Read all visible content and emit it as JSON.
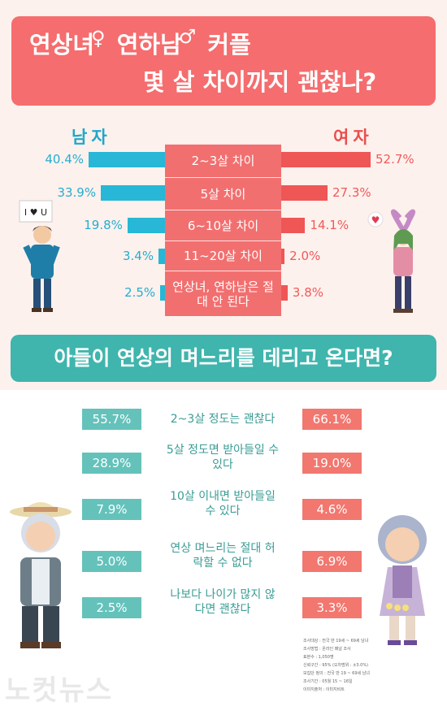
{
  "chart_data": [
    {
      "type": "bar",
      "title_line1": "연상녀 연하남 커플",
      "title_line2": "몇 살 차이까지 괜찮나?",
      "series": [
        {
          "name": "남자",
          "values": [
            40.4,
            33.9,
            19.8,
            3.4,
            2.5
          ]
        },
        {
          "name": "여자",
          "values": [
            52.7,
            27.3,
            14.1,
            2.0,
            3.8
          ]
        }
      ],
      "categories": [
        "2~3살 차이",
        "5살 차이",
        "6~10살 차이",
        "11~20살 차이",
        "연상녀, 연하남은 절대 안 된다"
      ],
      "labels_left": [
        "40.4%",
        "33.9%",
        "19.8%",
        "3.4%",
        "2.5%"
      ],
      "labels_right": [
        "52.7%",
        "27.3%",
        "14.1%",
        "2.0%",
        "3.8%"
      ]
    },
    {
      "type": "table",
      "title": "아들이 연상의 며느리를 데리고 온다면?",
      "categories": [
        "2~3살 정도는 괜찮다",
        "5살 정도면 받아들일 수 있다",
        "10살 이내면 받아들일 수 있다",
        "연상 며느리는 절대 허락할 수 없다",
        "나보다 나이가 많지 않다면 괜찮다"
      ],
      "labels_left": [
        "55.7%",
        "28.9%",
        "7.9%",
        "5.0%",
        "2.5%"
      ],
      "labels_right": [
        "66.1%",
        "19.0%",
        "4.6%",
        "6.9%",
        "3.3%"
      ]
    }
  ],
  "icons": [
    "female-symbol-icon",
    "male-symbol-icon",
    "man-illustration",
    "woman-illustration",
    "grandpa-illustration",
    "grandma-illustration"
  ],
  "sign_text": "I ♥ U",
  "colors": {
    "coral": "#f56d6e",
    "blue": "#28b7d6",
    "red": "#ef5656",
    "teal": "#3fb5ad",
    "teal_light": "#64c2bb"
  },
  "footnotes": [
    "조사대상 : 전국 만 19세 ~ 69세 남녀",
    "조사방법 : 온라인 패널 조사",
    "표본수 : 1,050명",
    "신뢰구간 : 95% (오차범위 : ±3.0%)",
    "모집단 정의 : 전국 만 19 ~ 69세 남녀",
    "조사기간 : 05월 15 ~ 16일",
    "이미지출처 : 이미지비트"
  ],
  "watermark": "노컷뉴스"
}
